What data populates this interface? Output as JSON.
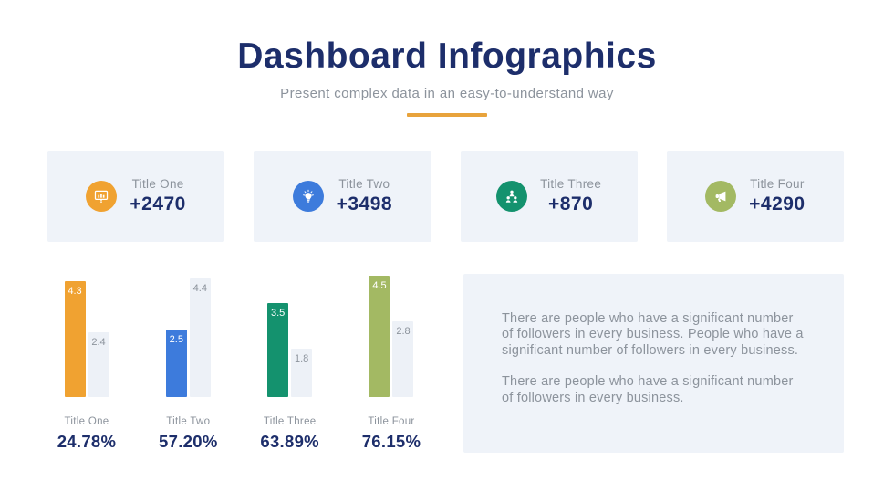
{
  "header": {
    "title": "Dashboard Infographics",
    "subtitle": "Present complex data in an easy-to-understand way"
  },
  "colors": {
    "navy": "#1d2e6b",
    "gray_text": "#8c939c",
    "accent_divider": "#e8a33c",
    "panel_bg": "#eff3f9",
    "neutral_bar": "#edf1f7"
  },
  "stats": {
    "cards": [
      {
        "label": "Title One",
        "value": "+2470",
        "icon": "presentation-chart-icon",
        "color": "#f0a231"
      },
      {
        "label": "Title Two",
        "value": "+3498",
        "icon": "lightbulb-icon",
        "color": "#3d7bdc"
      },
      {
        "label": "Title Three",
        "value": "+870",
        "icon": "org-chart-icon",
        "color": "#14926e"
      },
      {
        "label": "Title Four",
        "value": "+4290",
        "icon": "megaphone-icon",
        "color": "#a3b963"
      }
    ]
  },
  "chart_data": {
    "type": "bar",
    "categories": [
      "Title One",
      "Title Two",
      "Title Three",
      "Title Four"
    ],
    "series": [
      {
        "name": "highlight",
        "values": [
          4.3,
          2.5,
          3.5,
          4.5
        ],
        "colors": [
          "#f0a231",
          "#3d7bdc",
          "#14926e",
          "#a3b963"
        ]
      },
      {
        "name": "comparison",
        "values": [
          2.4,
          4.4,
          1.8,
          2.8
        ],
        "color": "#edf1f7"
      }
    ],
    "percent_labels": [
      "24.78%",
      "57.20%",
      "63.89%",
      "76.15%"
    ],
    "ylim": [
      0,
      4.5
    ],
    "grid": false,
    "legend": "none",
    "value_labels": true
  },
  "text_panel": {
    "paragraphs": [
      "There are people who have a significant number of followers in every business. People who have a significant number of followers in every business.",
      "There are people who have a significant number of followers in every business."
    ]
  }
}
